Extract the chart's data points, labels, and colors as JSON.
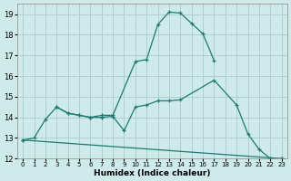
{
  "xlabel": "Humidex (Indice chaleur)",
  "background_color": "#ceeaea",
  "grid_color": "#aed0d0",
  "line_color": "#1e7a70",
  "xlim": [
    -0.5,
    23.5
  ],
  "ylim": [
    12,
    19.5
  ],
  "yticks": [
    12,
    13,
    14,
    15,
    16,
    17,
    18,
    19
  ],
  "xticks": [
    0,
    1,
    2,
    3,
    4,
    5,
    6,
    7,
    8,
    9,
    10,
    11,
    12,
    13,
    14,
    15,
    16,
    17,
    18,
    19,
    20,
    21,
    22,
    23
  ],
  "series1": {
    "x": [
      0,
      1,
      2,
      3,
      4,
      5,
      6,
      7,
      8,
      10,
      11,
      12,
      13,
      14,
      15,
      16,
      17
    ],
    "y": [
      12.9,
      13.0,
      13.9,
      14.5,
      14.2,
      14.1,
      14.0,
      14.1,
      14.1,
      16.7,
      16.8,
      18.5,
      19.1,
      19.05,
      18.55,
      18.05,
      16.75
    ]
  },
  "series2": {
    "x": [
      3,
      4,
      5,
      6,
      7,
      8,
      9,
      10,
      11,
      12,
      13,
      14,
      17,
      19,
      20,
      21,
      22,
      23
    ],
    "y": [
      14.5,
      14.2,
      14.1,
      14.0,
      14.0,
      14.05,
      13.35,
      14.5,
      14.6,
      14.8,
      14.8,
      14.85,
      15.8,
      14.6,
      13.2,
      12.45,
      12.0,
      12.0
    ]
  },
  "series3": {
    "x": [
      0,
      23
    ],
    "y": [
      12.9,
      12.0
    ]
  }
}
